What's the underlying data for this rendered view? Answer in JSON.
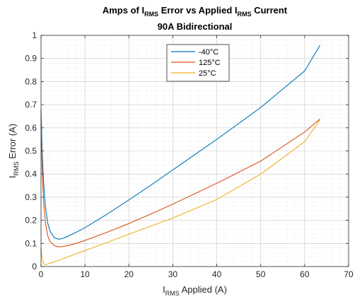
{
  "chart_data": {
    "type": "line",
    "title_line1": {
      "parts": [
        {
          "text": "Amps of I",
          "sub": false
        },
        {
          "text": "RMS",
          "sub": true
        },
        {
          "text": " Error vs Applied I",
          "sub": false
        },
        {
          "text": "RMS",
          "sub": true
        },
        {
          "text": " Current",
          "sub": false
        }
      ]
    },
    "title_line2": "90A Bidirectional",
    "xlabel": {
      "parts": [
        {
          "text": "I",
          "sub": false
        },
        {
          "text": "RMS",
          "sub": true
        },
        {
          "text": " Applied (A)",
          "sub": false
        }
      ]
    },
    "ylabel": {
      "parts": [
        {
          "text": "I",
          "sub": false
        },
        {
          "text": "RMS",
          "sub": true
        },
        {
          "text": " Error (A)",
          "sub": false
        }
      ]
    },
    "xlim": [
      0,
      70
    ],
    "ylim": [
      0,
      1
    ],
    "xticks": [
      0,
      10,
      20,
      30,
      40,
      50,
      60,
      70
    ],
    "yticks": [
      0,
      0.1,
      0.2,
      0.3,
      0.4,
      0.5,
      0.6,
      0.7,
      0.8,
      0.9,
      1
    ],
    "xtick_labels": [
      "0",
      "10",
      "20",
      "30",
      "40",
      "50",
      "60",
      "70"
    ],
    "ytick_labels": [
      "0",
      "0.1",
      "0.2",
      "0.3",
      "0.4",
      "0.5",
      "0.6",
      "0.7",
      "0.8",
      "0.9",
      "1"
    ],
    "grid": true,
    "minor_grid": true,
    "legend_position": "top-center",
    "series": [
      {
        "name": "-40°C",
        "color": "#0072BD",
        "x": [
          0,
          0.3,
          0.6,
          1,
          1.5,
          2,
          3,
          4,
          5,
          6,
          8,
          10,
          15,
          20,
          25,
          30,
          40,
          50,
          60,
          63.5
        ],
        "y": [
          0.68,
          0.48,
          0.36,
          0.26,
          0.19,
          0.155,
          0.125,
          0.118,
          0.122,
          0.13,
          0.148,
          0.168,
          0.226,
          0.288,
          0.352,
          0.418,
          0.55,
          0.688,
          0.846,
          0.957
        ]
      },
      {
        "name": "125°C",
        "color": "#D95319",
        "x": [
          0,
          0.3,
          0.6,
          1,
          1.5,
          2,
          3,
          4,
          5,
          6,
          8,
          10,
          15,
          20,
          25,
          30,
          40,
          50,
          60,
          63.5
        ],
        "y": [
          0.62,
          0.4,
          0.28,
          0.19,
          0.135,
          0.11,
          0.09,
          0.085,
          0.087,
          0.09,
          0.1,
          0.113,
          0.148,
          0.186,
          0.227,
          0.27,
          0.36,
          0.456,
          0.582,
          0.638
        ]
      },
      {
        "name": "25°C",
        "color": "#EDB120",
        "x": [
          0,
          0.15,
          0.35,
          0.6,
          1,
          2,
          3,
          5,
          8,
          10,
          15,
          20,
          30,
          40,
          50,
          60,
          63.5
        ],
        "y": [
          0.08,
          0.055,
          0.028,
          0.012,
          0.008,
          0.014,
          0.02,
          0.034,
          0.055,
          0.069,
          0.104,
          0.14,
          0.21,
          0.29,
          0.4,
          0.54,
          0.635
        ]
      }
    ]
  }
}
